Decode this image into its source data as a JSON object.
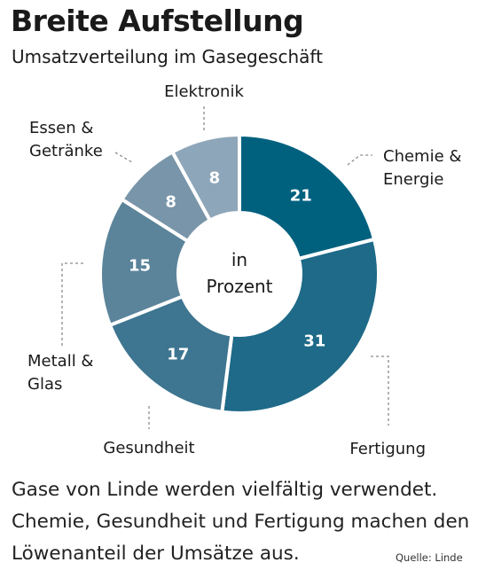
{
  "header": {
    "title": "Breite Aufstellung",
    "subtitle": "Umsatzverteilung im Gasegeschäft"
  },
  "chart_data": {
    "type": "pie",
    "donut": true,
    "center_label": [
      "in",
      "Prozent"
    ],
    "slices": [
      {
        "label": [
          "Chemie &",
          "Energie"
        ],
        "value": 21,
        "color": "#00617f"
      },
      {
        "label": [
          "Fertigung"
        ],
        "value": 31,
        "color": "#1e6a88"
      },
      {
        "label": [
          "Gesundheit"
        ],
        "value": 17,
        "color": "#3e7590"
      },
      {
        "label": [
          "Metall &",
          "Glas"
        ],
        "value": 15,
        "color": "#5b849b"
      },
      {
        "label": [
          "Essen &",
          "Getränke"
        ],
        "value": 8,
        "color": "#7995a9"
      },
      {
        "label": [
          "Elektronik"
        ],
        "value": 8,
        "color": "#8ea6b9"
      }
    ]
  },
  "caption": "Gase von Linde werden vielfältig verwendet. Chemie, Gesundheit und Fertigung machen den Löwenanteil der Umsätze aus.",
  "source": "Quelle: Linde"
}
